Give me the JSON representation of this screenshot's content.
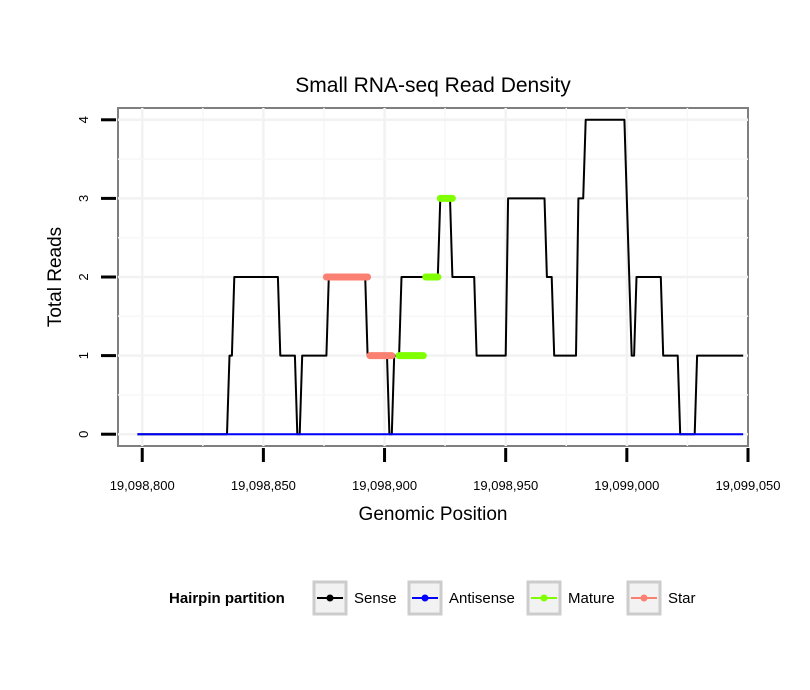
{
  "chart_data": {
    "type": "line",
    "title": "Small RNA-seq Read Density",
    "xlabel": "Genomic Position",
    "ylabel": "Total Reads",
    "xlim": [
      19098790,
      19099050
    ],
    "ylim": [
      -0.15,
      4.15
    ],
    "x_ticks": [
      19098800,
      19098850,
      19098900,
      19098950,
      19099000,
      19099050
    ],
    "x_tick_labels": [
      "19,098,800",
      "19,098,850",
      "19,098,900",
      "19,098,950",
      "19,099,000",
      "19,099,050"
    ],
    "y_ticks": [
      0,
      1,
      2,
      3,
      4
    ],
    "y_tick_labels": [
      "0",
      "1",
      "2",
      "3",
      "4"
    ],
    "legend": {
      "title": "Hairpin partition",
      "position": "bottom",
      "entries": [
        {
          "label": "Sense",
          "color": "#000000"
        },
        {
          "label": "Antisense",
          "color": "#0000ff"
        },
        {
          "label": "Mature",
          "color": "#7fff00"
        },
        {
          "label": "Star",
          "color": "#fa8072"
        }
      ]
    },
    "series": [
      {
        "name": "Sense",
        "color": "#000000",
        "x": [
          19098798,
          19098835,
          19098836,
          19098837,
          19098838,
          19098856,
          19098857,
          19098863,
          19098864,
          19098865,
          19098866,
          19098876,
          19098877,
          19098892,
          19098893,
          19098901,
          19098902,
          19098903,
          19098904,
          19098906,
          19098907,
          19098916,
          19098917,
          19098922,
          19098923,
          19098927,
          19098928,
          19098937,
          19098938,
          19098950,
          19098951,
          19098966,
          19098967,
          19098969,
          19098970,
          19098979,
          19098980,
          19098982,
          19098983,
          19098986,
          19098987,
          19098999,
          19099000,
          19099002,
          19099003,
          19099004,
          19099014,
          19099015,
          19099021,
          19099022,
          19099028,
          19099029,
          19099048
        ],
        "y": [
          0,
          0,
          1,
          1,
          2,
          2,
          1,
          1,
          0,
          0,
          1,
          1,
          2,
          2,
          1,
          1,
          0,
          0,
          1,
          1,
          2,
          2,
          2,
          2,
          3,
          3,
          2,
          2,
          1,
          1,
          3,
          3,
          2,
          2,
          1,
          1,
          3,
          3,
          4,
          4,
          4,
          4,
          3,
          1,
          1,
          2,
          2,
          1,
          1,
          0,
          0,
          1,
          1
        ]
      },
      {
        "name": "Antisense",
        "color": "#0000ff",
        "x": [
          19098798,
          19099048
        ],
        "y": [
          0,
          0
        ]
      },
      {
        "name": "Mature",
        "color": "#7fff00",
        "segments": [
          {
            "x": [
              19098906,
              19098916
            ],
            "y": 1
          },
          {
            "x": [
              19098917,
              19098922
            ],
            "y": 2
          },
          {
            "x": [
              19098923,
              19098928
            ],
            "y": 3
          }
        ]
      },
      {
        "name": "Star",
        "color": "#fa8072",
        "segments": [
          {
            "x": [
              19098876,
              19098893
            ],
            "y": 2
          },
          {
            "x": [
              19098894,
              19098903
            ],
            "y": 1
          }
        ]
      }
    ]
  }
}
